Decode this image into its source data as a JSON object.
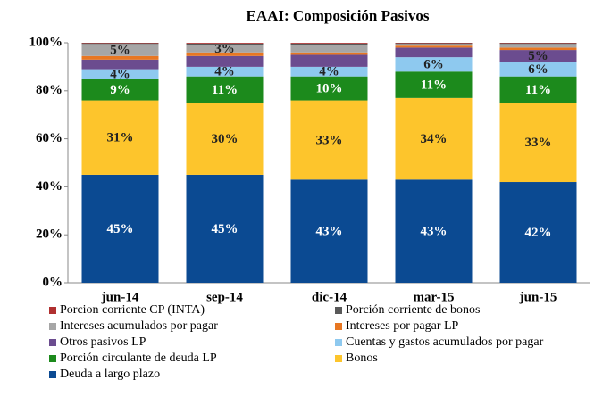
{
  "chart_data": {
    "type": "stacked_bar",
    "title": "EAAI: Composición Pasivos",
    "categories": [
      "jun-14",
      "sep-14",
      "dic-14",
      "mar-15",
      "jun-15"
    ],
    "ylim": [
      0,
      100
    ],
    "yticks": [
      {
        "value": 0,
        "label": "0%"
      },
      {
        "value": 20,
        "label": "20%"
      },
      {
        "value": 40,
        "label": "40%"
      },
      {
        "value": 60,
        "label": "60%"
      },
      {
        "value": 80,
        "label": "80%"
      },
      {
        "value": 100,
        "label": "100%"
      }
    ],
    "series": [
      {
        "name": "Deuda a largo plazo",
        "color": "#0b4a92",
        "values": [
          45,
          45,
          43,
          43,
          42
        ],
        "value_labels": [
          "45%",
          "45%",
          "43%",
          "43%",
          "42%"
        ]
      },
      {
        "name": "Bonos",
        "color": "#fdc52c",
        "values": [
          31,
          30,
          33,
          34,
          33
        ],
        "value_labels": [
          "31%",
          "30%",
          "33%",
          "34%",
          "33%"
        ]
      },
      {
        "name": "Porción circulante de deuda LP",
        "color": "#1c8a1c",
        "values": [
          9,
          11,
          10,
          11,
          11
        ],
        "value_labels": [
          "9%",
          "11%",
          "10%",
          "11%",
          "11%"
        ]
      },
      {
        "name": "Cuentas y gastos acumulados por pagar",
        "color": "#8ec9ef",
        "values": [
          4,
          4,
          4,
          6,
          6
        ],
        "value_labels": [
          "4%",
          "4%",
          "4%",
          "6%",
          "6%"
        ]
      },
      {
        "name": "Otros pasivos LP",
        "color": "#6b4c8f",
        "values": [
          4,
          4.5,
          5,
          4,
          5
        ],
        "value_labels": [
          null,
          null,
          null,
          null,
          "5%"
        ]
      },
      {
        "name": "Intereses por pagar LP",
        "color": "#e87722",
        "values": [
          1.5,
          1.5,
          1,
          0.8,
          1
        ]
      },
      {
        "name": "Intereses acumulados por pagar",
        "color": "#a6a6a6",
        "values": [
          5,
          3,
          3,
          0.7,
          1.5
        ],
        "value_labels": [
          "5%",
          "3%",
          null,
          null,
          null
        ]
      },
      {
        "name": "Porción corriente de bonos",
        "color": "#595959",
        "values": [
          0.3,
          0.7,
          0.7,
          0.3,
          0.3
        ]
      },
      {
        "name": "Porcion corriente CP (INTA)",
        "color": "#b03030",
        "values": [
          0.2,
          0.3,
          0.3,
          0.2,
          0.2
        ]
      }
    ]
  }
}
